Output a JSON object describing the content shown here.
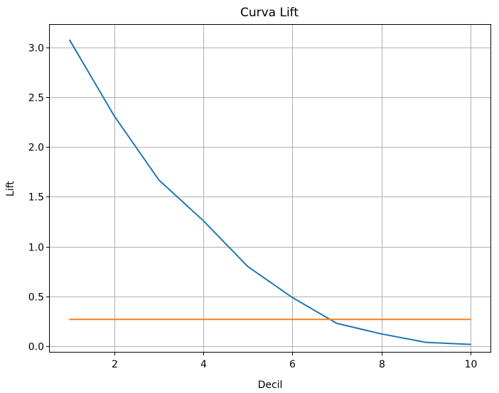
{
  "chart_data": {
    "type": "line",
    "title": "Curva Lift",
    "xlabel": "Decil",
    "ylabel": "Lift",
    "xlim": [
      0.55,
      10.45
    ],
    "ylim": [
      -0.055,
      3.225
    ],
    "xticks": [
      2,
      4,
      6,
      8,
      10
    ],
    "xtick_labels": [
      "2",
      "4",
      "6",
      "8",
      "10"
    ],
    "yticks": [
      0.0,
      0.5,
      1.0,
      1.5,
      2.0,
      2.5,
      3.0
    ],
    "ytick_labels": [
      "0.0",
      "0.5",
      "1.0",
      "1.5",
      "2.0",
      "2.5",
      "3.0"
    ],
    "grid": true,
    "series": [
      {
        "color": "#1f77b4",
        "x": [
          1,
          2,
          3,
          4,
          5,
          6,
          7,
          8,
          9,
          10
        ],
        "y": [
          3.07,
          2.31,
          1.67,
          1.26,
          0.8,
          0.49,
          0.23,
          0.125,
          0.04,
          0.02
        ]
      },
      {
        "color": "#ff7f0e",
        "x": [
          1,
          10
        ],
        "y": [
          0.27,
          0.27
        ]
      }
    ]
  }
}
